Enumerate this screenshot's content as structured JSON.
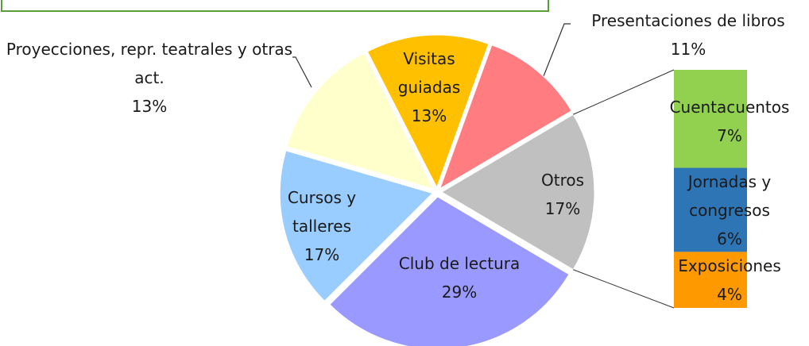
{
  "chart_data": {
    "type": "pie-of-bar",
    "categories": [
      "Otros",
      "Club de lectura",
      "Cursos y talleres",
      "Proyecciones, repr. teatrales y otras act.",
      "Visitas guiadas",
      "Presentaciones de libros"
    ],
    "values": [
      17,
      29,
      17,
      13,
      13,
      11
    ],
    "value_labels": [
      "17%",
      "29%",
      "17%",
      "13%",
      "13%",
      "11%"
    ],
    "colors": [
      "#c0c0c0",
      "#9999ff",
      "#99ccff",
      "#ffffcc",
      "#ffc000",
      "#ff7c80"
    ],
    "bar": {
      "categories": [
        "Cuentacuentos",
        "Jornadas y congresos",
        "Exposiciones"
      ],
      "values": [
        7,
        6,
        4
      ],
      "value_labels": [
        "7%",
        "6%",
        "4%"
      ],
      "colors": [
        "#92d050",
        "#2e75b6",
        "#ff9900"
      ]
    }
  }
}
